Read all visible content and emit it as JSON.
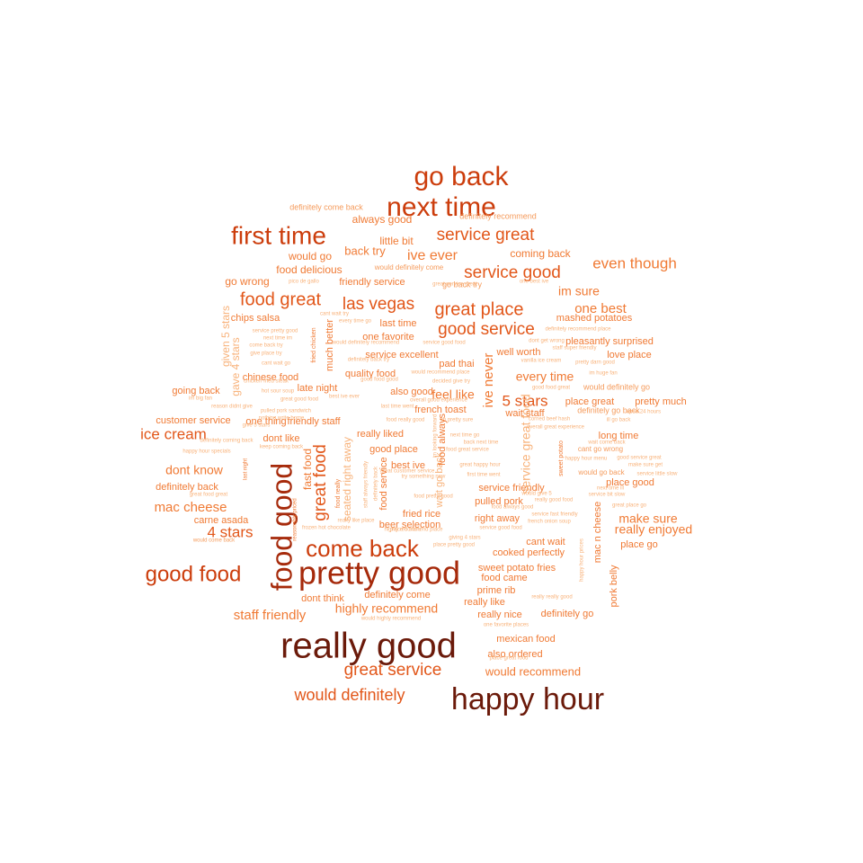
{
  "palette": {
    "background": "#ffffff",
    "tier1": "#6b1a0a",
    "tier2": "#a62a0b",
    "tier3": "#cc3d0c",
    "tier4": "#e2571a",
    "tier5": "#f07a34",
    "tier6": "#f59b5c",
    "tier7": "#f8b27a"
  },
  "words": [
    {
      "text": "really good",
      "tier": 1
    },
    {
      "text": "happy hour",
      "tier": 1
    },
    {
      "text": "pretty good",
      "tier": 2
    },
    {
      "text": "food good",
      "tier": 2
    },
    {
      "text": "go back",
      "tier": 3
    },
    {
      "text": "next time",
      "tier": 3
    },
    {
      "text": "first time",
      "tier": 3
    },
    {
      "text": "come back",
      "tier": 3
    },
    {
      "text": "good food",
      "tier": 3
    },
    {
      "text": "great service",
      "tier": 4
    },
    {
      "text": "would definitely",
      "tier": 4
    },
    {
      "text": "service great",
      "tier": 4
    },
    {
      "text": "great place",
      "tier": 4
    },
    {
      "text": "service good",
      "tier": 4
    },
    {
      "text": "food great",
      "tier": 4
    },
    {
      "text": "las vegas",
      "tier": 4
    },
    {
      "text": "good service",
      "tier": 4
    },
    {
      "text": "great food",
      "tier": 4
    },
    {
      "text": "ice cream",
      "tier": 4
    },
    {
      "text": "5 stars",
      "tier": 4
    },
    {
      "text": "4 stars",
      "tier": 4
    },
    {
      "text": "even though",
      "tier": 5
    },
    {
      "text": "im sure",
      "tier": 5
    },
    {
      "text": "one best",
      "tier": 5
    },
    {
      "text": "ive ever",
      "tier": 5
    },
    {
      "text": "mac cheese",
      "tier": 5
    },
    {
      "text": "make sure",
      "tier": 5
    },
    {
      "text": "really enjoyed",
      "tier": 5
    },
    {
      "text": "dont know",
      "tier": 5
    },
    {
      "text": "staff friendly",
      "tier": 5
    },
    {
      "text": "highly recommend",
      "tier": 5
    },
    {
      "text": "every time",
      "tier": 5
    },
    {
      "text": "feel like",
      "tier": 5
    },
    {
      "text": "would recommend",
      "tier": 5
    },
    {
      "text": "back try",
      "tier": 5
    },
    {
      "text": "little bit",
      "tier": 5
    },
    {
      "text": "always good",
      "tier": 5
    },
    {
      "text": "coming back",
      "tier": 5
    },
    {
      "text": "would go",
      "tier": 5
    },
    {
      "text": "food delicious",
      "tier": 5
    },
    {
      "text": "go wrong",
      "tier": 5
    },
    {
      "text": "friendly service",
      "tier": 5
    },
    {
      "text": "mashed potatoes",
      "tier": 5
    },
    {
      "text": "last time",
      "tier": 5
    },
    {
      "text": "chips salsa",
      "tier": 5
    },
    {
      "text": "one favorite",
      "tier": 5
    },
    {
      "text": "pleasantly surprised",
      "tier": 5
    },
    {
      "text": "service excellent",
      "tier": 5
    },
    {
      "text": "well worth",
      "tier": 5
    },
    {
      "text": "love place",
      "tier": 5
    },
    {
      "text": "pad thai",
      "tier": 5
    },
    {
      "text": "quality food",
      "tier": 5
    },
    {
      "text": "chinese food",
      "tier": 5
    },
    {
      "text": "going back",
      "tier": 5
    },
    {
      "text": "late night",
      "tier": 5
    },
    {
      "text": "also good",
      "tier": 5
    },
    {
      "text": "place great",
      "tier": 5
    },
    {
      "text": "pretty much",
      "tier": 5
    },
    {
      "text": "customer service",
      "tier": 5
    },
    {
      "text": "one thing",
      "tier": 5
    },
    {
      "text": "friendly staff",
      "tier": 5
    },
    {
      "text": "french toast",
      "tier": 5
    },
    {
      "text": "wait staff",
      "tier": 5
    },
    {
      "text": "long time",
      "tier": 5
    },
    {
      "text": "dont like",
      "tier": 5
    },
    {
      "text": "really liked",
      "tier": 5
    },
    {
      "text": "good place",
      "tier": 5
    },
    {
      "text": "best ive",
      "tier": 5
    },
    {
      "text": "definitely back",
      "tier": 5
    },
    {
      "text": "service friendly",
      "tier": 5
    },
    {
      "text": "place good",
      "tier": 5
    },
    {
      "text": "pulled pork",
      "tier": 5
    },
    {
      "text": "fried rice",
      "tier": 5
    },
    {
      "text": "carne asada",
      "tier": 5
    },
    {
      "text": "beer selection",
      "tier": 5
    },
    {
      "text": "right away",
      "tier": 5
    },
    {
      "text": "cant wait",
      "tier": 5
    },
    {
      "text": "place go",
      "tier": 5
    },
    {
      "text": "cooked perfectly",
      "tier": 5
    },
    {
      "text": "sweet potato fries",
      "tier": 5
    },
    {
      "text": "food came",
      "tier": 5
    },
    {
      "text": "prime rib",
      "tier": 5
    },
    {
      "text": "dont think",
      "tier": 5
    },
    {
      "text": "definitely come",
      "tier": 5
    },
    {
      "text": "really like",
      "tier": 5
    },
    {
      "text": "really nice",
      "tier": 5
    },
    {
      "text": "definitely go",
      "tier": 5
    },
    {
      "text": "mexican food",
      "tier": 5
    },
    {
      "text": "also ordered",
      "tier": 5
    },
    {
      "text": "definitely recommend",
      "tier": 6
    },
    {
      "text": "definitely come back",
      "tier": 6
    },
    {
      "text": "would definitely come",
      "tier": 6
    },
    {
      "text": "go back try",
      "tier": 6
    },
    {
      "text": "would definitely go",
      "tier": 6
    },
    {
      "text": "definitely go back",
      "tier": 6
    },
    {
      "text": "cant go wrong",
      "tier": 6
    },
    {
      "text": "would go back",
      "tier": 6
    },
    {
      "text": "would come back",
      "tier": 6
    },
    {
      "text": "happy hour specials",
      "tier": 7
    },
    {
      "text": "definitely coming back",
      "tier": 7
    },
    {
      "text": "keep coming back",
      "tier": 7
    },
    {
      "text": "great food great",
      "tier": 7
    },
    {
      "text": "frozen hot chocolate",
      "tier": 7
    },
    {
      "text": "service good food",
      "tier": 7
    },
    {
      "text": "would highly recommend",
      "tier": 7
    },
    {
      "text": "service pretty good",
      "tier": 7
    },
    {
      "text": "next time im",
      "tier": 7
    },
    {
      "text": "come back try",
      "tier": 7
    },
    {
      "text": "give place try",
      "tier": 7
    },
    {
      "text": "cant wait go",
      "tier": 7
    },
    {
      "text": "chicken fried steak",
      "tier": 7
    },
    {
      "text": "hot sour soup",
      "tier": 7
    },
    {
      "text": "im big fan",
      "tier": 7
    },
    {
      "text": "reason didnt give",
      "tier": 7
    },
    {
      "text": "great good food",
      "tier": 7
    },
    {
      "text": "best ive ever",
      "tier": 7
    },
    {
      "text": "give 5 stars",
      "tier": 7
    },
    {
      "text": "pulled pork sandwich",
      "tier": 7
    },
    {
      "text": "nothing write home",
      "tier": 7
    },
    {
      "text": "last time went",
      "tier": 7
    },
    {
      "text": "food really good",
      "tier": 7
    },
    {
      "text": "service good food",
      "tier": 7
    },
    {
      "text": "definitely back try",
      "tier": 7
    },
    {
      "text": "would definitely recommend",
      "tier": 7
    },
    {
      "text": "would recommend place",
      "tier": 7
    },
    {
      "text": "decided give try",
      "tier": 7
    },
    {
      "text": "overall good experience",
      "tier": 7
    },
    {
      "text": "good food good",
      "tier": 7
    },
    {
      "text": "vanilla ice cream",
      "tier": 7
    },
    {
      "text": "try something new",
      "tier": 7
    },
    {
      "text": "food pretty good",
      "tier": 7
    },
    {
      "text": "great customer service",
      "tier": 7
    },
    {
      "text": "great happy hour",
      "tier": 7
    },
    {
      "text": "first time went",
      "tier": 7
    },
    {
      "text": "food great service",
      "tier": 7
    },
    {
      "text": "next time go",
      "tier": 7
    },
    {
      "text": "back next time",
      "tier": 7
    },
    {
      "text": "im pretty sure",
      "tier": 7
    },
    {
      "text": "corned beef hash",
      "tier": 7
    },
    {
      "text": "overall great experience",
      "tier": 7
    },
    {
      "text": "ill go back",
      "tier": 7
    },
    {
      "text": "open 24 hours",
      "tier": 7
    },
    {
      "text": "wait come back",
      "tier": 7
    },
    {
      "text": "good service great",
      "tier": 7
    },
    {
      "text": "make sure get",
      "tier": 7
    },
    {
      "text": "service little slow",
      "tier": 7
    },
    {
      "text": "happy hour menu",
      "tier": 7
    },
    {
      "text": "next time ill",
      "tier": 7
    },
    {
      "text": "service bit slow",
      "tier": 7
    },
    {
      "text": "great place go",
      "tier": 7
    },
    {
      "text": "really good food",
      "tier": 7
    },
    {
      "text": "service fast friendly",
      "tier": 7
    },
    {
      "text": "french onion soup",
      "tier": 7
    },
    {
      "text": "food always good",
      "tier": 7
    },
    {
      "text": "giving 4 stars",
      "tier": 7
    },
    {
      "text": "place pretty good",
      "tier": 7
    },
    {
      "text": "really really good",
      "tier": 7
    },
    {
      "text": "one favorite places",
      "tier": 7
    },
    {
      "text": "place great food",
      "tier": 7
    },
    {
      "text": "definitely recommend place",
      "tier": 7
    },
    {
      "text": "dont get wrong",
      "tier": 7
    },
    {
      "text": "staff super friendly",
      "tier": 7
    },
    {
      "text": "pretty darn good",
      "tier": 7
    },
    {
      "text": "im huge fan",
      "tier": 7
    },
    {
      "text": "good food great",
      "tier": 7
    },
    {
      "text": "really like place",
      "tier": 7
    },
    {
      "text": "place 5 stars",
      "tier": 7
    },
    {
      "text": "highly recommend place",
      "tier": 7
    },
    {
      "text": "would give 5",
      "tier": 7
    },
    {
      "text": "one best ive",
      "tier": 7
    },
    {
      "text": "pico de gallo",
      "tier": 7
    },
    {
      "text": "great service great",
      "tier": 7
    },
    {
      "text": "cant wait try",
      "tier": 7
    },
    {
      "text": "every time go",
      "tier": 7
    },
    {
      "text": "given 5 stars",
      "tier": 7
    },
    {
      "text": "gave 4 stars",
      "tier": 7
    },
    {
      "text": "much better",
      "tier": 5
    },
    {
      "text": "fried chicken",
      "tier": 5
    },
    {
      "text": "ive never",
      "tier": 5
    },
    {
      "text": "service great food",
      "tier": 7
    },
    {
      "text": "sweet potato",
      "tier": 5
    },
    {
      "text": "fast food",
      "tier": 5
    },
    {
      "text": "seated right away",
      "tier": 7
    },
    {
      "text": "food really",
      "tier": 5
    },
    {
      "text": "food service",
      "tier": 5
    },
    {
      "text": "wait go back",
      "tier": 7
    },
    {
      "text": "food always",
      "tier": 5
    },
    {
      "text": "mac n cheese",
      "tier": 5
    },
    {
      "text": "pork belly",
      "tier": 5
    },
    {
      "text": "last night",
      "tier": 5
    },
    {
      "text": "reasonably priced",
      "tier": 5
    },
    {
      "text": "staff always friendly",
      "tier": 7
    },
    {
      "text": "definitely back",
      "tier": 7
    },
    {
      "text": "happy hour prices",
      "tier": 7
    },
    {
      "text": "im looking forward",
      "tier": 7
    },
    {
      "text": "give 4 stars",
      "tier": 7
    },
    {
      "text": "service always good",
      "tier": 7
    },
    {
      "text": "definitely going back",
      "tier": 7
    }
  ]
}
